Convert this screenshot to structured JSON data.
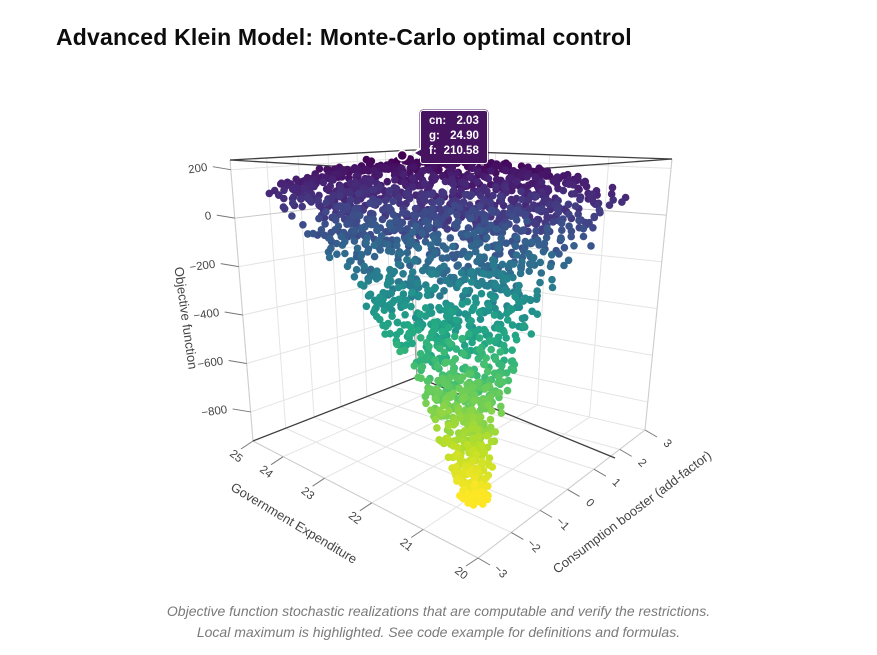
{
  "page": {
    "title": "Advanced Klein Model: Monte-Carlo optimal control",
    "caption_line1": "Objective function stochastic realizations that are computable and verify the restrictions.",
    "caption_line2": "Local maximum is highlighted. See code example for definitions and formulas."
  },
  "chart_data": {
    "type": "scatter",
    "subtype": "scatter3d-point-cloud",
    "title": "Advanced Klein Model: Monte-Carlo optimal control",
    "grid": true,
    "background": "#ffffff",
    "axes": {
      "x": {
        "label": "Government Expenditure",
        "ticks": [
          "25",
          "24",
          "23",
          "22",
          "21",
          "20"
        ],
        "tick_values": [
          25,
          24,
          23,
          22,
          21,
          20
        ],
        "range": [
          25,
          20
        ]
      },
      "y": {
        "label": "Consumption booster (add-factor)",
        "ticks": [
          "−3",
          "−2",
          "−1",
          "0",
          "1",
          "2",
          "3"
        ],
        "tick_values": [
          -3,
          -2,
          -1,
          0,
          1,
          2,
          3
        ],
        "range": [
          -3,
          3
        ]
      },
      "z": {
        "label": "Objective function",
        "ticks": [
          "200",
          "0",
          "−200",
          "−400",
          "−600",
          "−800"
        ],
        "tick_values": [
          200,
          0,
          -200,
          -400,
          -600,
          -800
        ],
        "range": [
          -920,
          240
        ]
      }
    },
    "colorscale": {
      "name": "viridis",
      "stops": [
        "#440154",
        "#482475",
        "#414487",
        "#355f8d",
        "#2a788e",
        "#21918c",
        "#22a884",
        "#44bf70",
        "#7ad151",
        "#bddf26",
        "#fde725"
      ]
    },
    "point_cloud": {
      "description": "Funnel of Monte-Carlo objective realizations: wide dark-purple cap near f=210 (top) narrowing to a sparse yellow tip near f=-870 around g=20.7, cn=-2.3",
      "count": 2000,
      "seed": 11,
      "marker_px": 3.8,
      "f_top_max": 225,
      "f_bottom": -880
    },
    "highlight": {
      "cn": 2.03,
      "g": 24.9,
      "f": 210.58,
      "marker_color": "#440154",
      "ring_color": "#ffffff"
    },
    "tooltip": {
      "bg": "#451360",
      "rows": [
        {
          "label": "cn:",
          "value": "2.03"
        },
        {
          "label": "g:",
          "value": "24.90"
        },
        {
          "label": "f:",
          "value": "210.58"
        }
      ]
    },
    "colors": {
      "grid": "#e4e4e4",
      "zeroline": "#c9c9c9",
      "edge_dark": "#3f3f3f",
      "edge_light": "#cccccc",
      "tick_text": "#444444"
    }
  }
}
